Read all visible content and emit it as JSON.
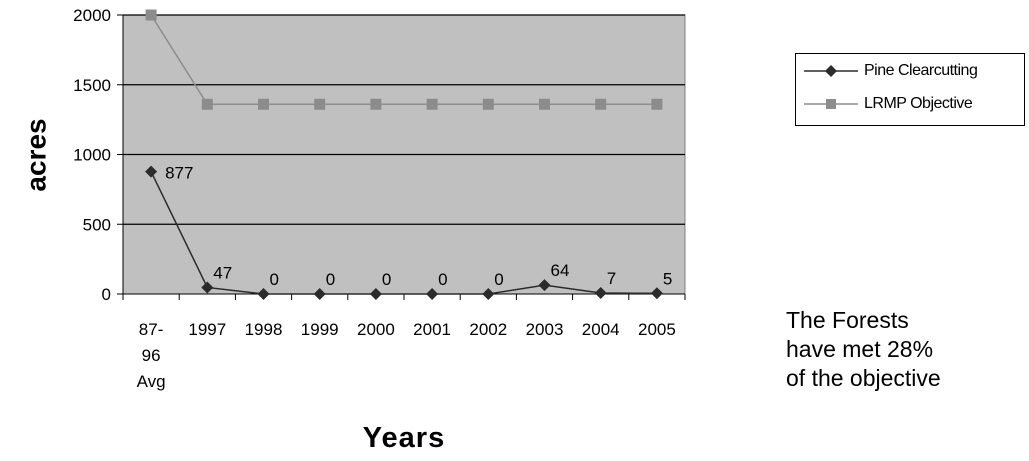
{
  "chart_data": {
    "type": "line",
    "categories": [
      "87-96 Avg",
      "1997",
      "1998",
      "1999",
      "2000",
      "2001",
      "2002",
      "2003",
      "2004",
      "2005"
    ],
    "category_lines": [
      [
        "87-",
        "96",
        "Avg"
      ],
      [
        "1997"
      ],
      [
        "1998"
      ],
      [
        "1999"
      ],
      [
        "2000"
      ],
      [
        "2001"
      ],
      [
        "2002"
      ],
      [
        "2003"
      ],
      [
        "2004"
      ],
      [
        "2005"
      ]
    ],
    "series": [
      {
        "name": "Pine Clearcutting",
        "values": [
          877,
          47,
          0,
          0,
          0,
          0,
          0,
          64,
          7,
          5
        ],
        "data_labels": [
          "877",
          "47",
          "0",
          "0",
          "0",
          "0",
          "0",
          "64",
          "7",
          "5"
        ],
        "color": "#2b2b2b",
        "marker": "diamond"
      },
      {
        "name": "LRMP Objective",
        "values": [
          2000,
          1360,
          1360,
          1360,
          1360,
          1360,
          1360,
          1360,
          1360,
          1360
        ],
        "color": "#8c8c8c",
        "marker": "square"
      }
    ],
    "yticks": [
      "0",
      "500",
      "1000",
      "1500",
      "2000"
    ],
    "ylim": [
      0,
      2000
    ],
    "xlabel": "Years",
    "ylabel": "acres",
    "grid": true,
    "plot_background": "#c0c0c0",
    "legend_position": "right"
  },
  "annotation": {
    "lines": [
      "The Forests",
      "have met 28%",
      "of the objective"
    ]
  }
}
